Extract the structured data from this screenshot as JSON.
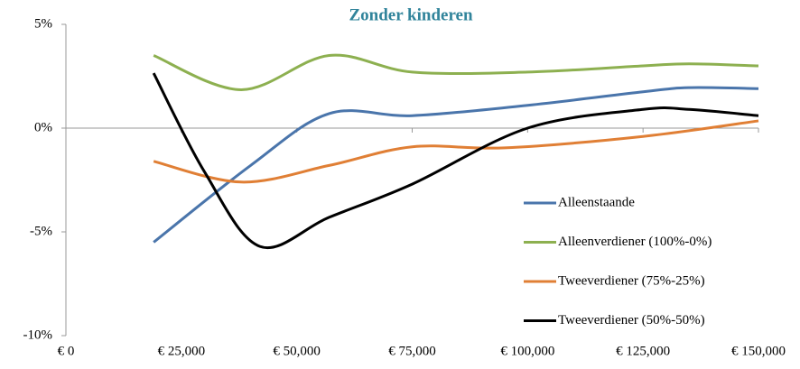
{
  "chart_data": {
    "type": "line",
    "title": "Zonder kinderen",
    "title_color": "#31849b",
    "xlim": [
      0,
      150000
    ],
    "ylim": [
      -10,
      5
    ],
    "xticks": [
      {
        "value": 0,
        "label": "€ 0"
      },
      {
        "value": 25000,
        "label": "€ 25,000"
      },
      {
        "value": 50000,
        "label": "€ 50,000"
      },
      {
        "value": 75000,
        "label": "€ 75,000"
      },
      {
        "value": 100000,
        "label": "€ 100,000"
      },
      {
        "value": 125000,
        "label": "€ 125,000"
      },
      {
        "value": 150000,
        "label": "€ 150,000"
      }
    ],
    "yticks": [
      {
        "value": -10,
        "label": "-10%"
      },
      {
        "value": -5,
        "label": "-5%"
      },
      {
        "value": 0,
        "label": "0%"
      },
      {
        "value": 5,
        "label": "5%"
      }
    ],
    "legend": "lower right",
    "smooth": true,
    "series": [
      {
        "name": "Alleenstaande",
        "color": "#4a75ab",
        "x": [
          19000,
          40000,
          57000,
          75000,
          100000,
          125000,
          135000,
          150000
        ],
        "values": [
          -5.5,
          -1.8,
          0.7,
          0.6,
          1.1,
          1.75,
          1.95,
          1.9
        ]
      },
      {
        "name": "Alleenverdiener (100%-0%)",
        "color": "#8db050",
        "x": [
          19000,
          38000,
          57000,
          75000,
          100000,
          125000,
          135000,
          150000
        ],
        "values": [
          3.5,
          1.85,
          3.5,
          2.7,
          2.7,
          3.0,
          3.1,
          3.0
        ]
      },
      {
        "name": "Tweeverdiener (75%-25%)",
        "color": "#e07f35",
        "x": [
          19000,
          38000,
          57000,
          75000,
          95000,
          125000,
          150000
        ],
        "values": [
          -1.6,
          -2.6,
          -1.8,
          -0.9,
          -0.95,
          -0.4,
          0.35
        ]
      },
      {
        "name": "Tweeverdiener (50%-50%)",
        "color": "#000000",
        "x": [
          19000,
          30000,
          42000,
          57000,
          75000,
          100000,
          125000,
          135000,
          150000
        ],
        "values": [
          2.65,
          -2.1,
          -5.7,
          -4.3,
          -2.7,
          0.0,
          0.9,
          0.9,
          0.6
        ]
      }
    ]
  }
}
